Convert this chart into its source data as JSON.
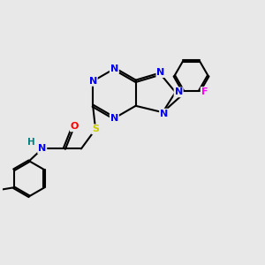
{
  "bg_color": "#e8e8e8",
  "atom_colors": {
    "N": "#0000ee",
    "O": "#ff0000",
    "S": "#cccc00",
    "F": "#ff00ff",
    "H": "#008080",
    "C": "#000000"
  },
  "bond_lw": 1.5,
  "dbo": 0.04
}
